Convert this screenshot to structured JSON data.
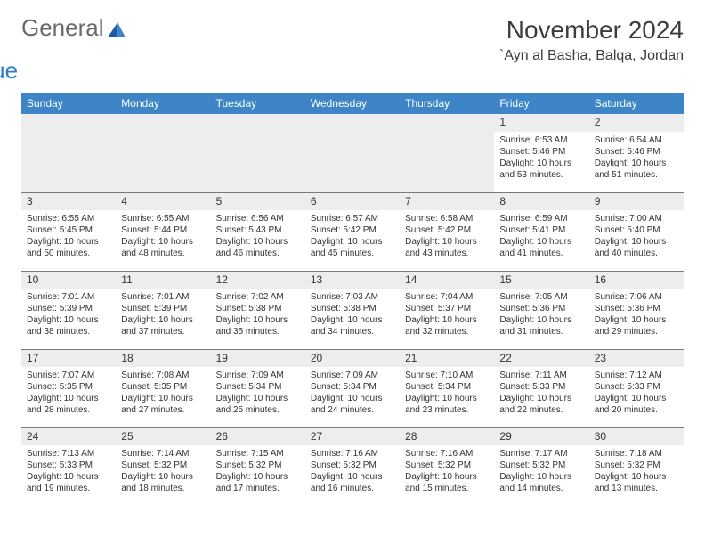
{
  "logo": {
    "text1": "General",
    "text2": "Blue"
  },
  "header": {
    "month_title": "November 2024",
    "location": "`Ayn al Basha, Balqa, Jordan"
  },
  "colors": {
    "header_bg": "#3d85c6",
    "header_text": "#ffffff",
    "daynum_bg": "#ededed",
    "cell_border": "#7a7a7a",
    "logo_gray": "#6a6a6a",
    "logo_blue": "#2f7ec2"
  },
  "day_names": [
    "Sunday",
    "Monday",
    "Tuesday",
    "Wednesday",
    "Thursday",
    "Friday",
    "Saturday"
  ],
  "weeks": [
    [
      null,
      null,
      null,
      null,
      null,
      {
        "n": "1",
        "sr": "Sunrise: 6:53 AM",
        "ss": "Sunset: 5:46 PM",
        "dl": "Daylight: 10 hours and 53 minutes."
      },
      {
        "n": "2",
        "sr": "Sunrise: 6:54 AM",
        "ss": "Sunset: 5:46 PM",
        "dl": "Daylight: 10 hours and 51 minutes."
      }
    ],
    [
      {
        "n": "3",
        "sr": "Sunrise: 6:55 AM",
        "ss": "Sunset: 5:45 PM",
        "dl": "Daylight: 10 hours and 50 minutes."
      },
      {
        "n": "4",
        "sr": "Sunrise: 6:55 AM",
        "ss": "Sunset: 5:44 PM",
        "dl": "Daylight: 10 hours and 48 minutes."
      },
      {
        "n": "5",
        "sr": "Sunrise: 6:56 AM",
        "ss": "Sunset: 5:43 PM",
        "dl": "Daylight: 10 hours and 46 minutes."
      },
      {
        "n": "6",
        "sr": "Sunrise: 6:57 AM",
        "ss": "Sunset: 5:42 PM",
        "dl": "Daylight: 10 hours and 45 minutes."
      },
      {
        "n": "7",
        "sr": "Sunrise: 6:58 AM",
        "ss": "Sunset: 5:42 PM",
        "dl": "Daylight: 10 hours and 43 minutes."
      },
      {
        "n": "8",
        "sr": "Sunrise: 6:59 AM",
        "ss": "Sunset: 5:41 PM",
        "dl": "Daylight: 10 hours and 41 minutes."
      },
      {
        "n": "9",
        "sr": "Sunrise: 7:00 AM",
        "ss": "Sunset: 5:40 PM",
        "dl": "Daylight: 10 hours and 40 minutes."
      }
    ],
    [
      {
        "n": "10",
        "sr": "Sunrise: 7:01 AM",
        "ss": "Sunset: 5:39 PM",
        "dl": "Daylight: 10 hours and 38 minutes."
      },
      {
        "n": "11",
        "sr": "Sunrise: 7:01 AM",
        "ss": "Sunset: 5:39 PM",
        "dl": "Daylight: 10 hours and 37 minutes."
      },
      {
        "n": "12",
        "sr": "Sunrise: 7:02 AM",
        "ss": "Sunset: 5:38 PM",
        "dl": "Daylight: 10 hours and 35 minutes."
      },
      {
        "n": "13",
        "sr": "Sunrise: 7:03 AM",
        "ss": "Sunset: 5:38 PM",
        "dl": "Daylight: 10 hours and 34 minutes."
      },
      {
        "n": "14",
        "sr": "Sunrise: 7:04 AM",
        "ss": "Sunset: 5:37 PM",
        "dl": "Daylight: 10 hours and 32 minutes."
      },
      {
        "n": "15",
        "sr": "Sunrise: 7:05 AM",
        "ss": "Sunset: 5:36 PM",
        "dl": "Daylight: 10 hours and 31 minutes."
      },
      {
        "n": "16",
        "sr": "Sunrise: 7:06 AM",
        "ss": "Sunset: 5:36 PM",
        "dl": "Daylight: 10 hours and 29 minutes."
      }
    ],
    [
      {
        "n": "17",
        "sr": "Sunrise: 7:07 AM",
        "ss": "Sunset: 5:35 PM",
        "dl": "Daylight: 10 hours and 28 minutes."
      },
      {
        "n": "18",
        "sr": "Sunrise: 7:08 AM",
        "ss": "Sunset: 5:35 PM",
        "dl": "Daylight: 10 hours and 27 minutes."
      },
      {
        "n": "19",
        "sr": "Sunrise: 7:09 AM",
        "ss": "Sunset: 5:34 PM",
        "dl": "Daylight: 10 hours and 25 minutes."
      },
      {
        "n": "20",
        "sr": "Sunrise: 7:09 AM",
        "ss": "Sunset: 5:34 PM",
        "dl": "Daylight: 10 hours and 24 minutes."
      },
      {
        "n": "21",
        "sr": "Sunrise: 7:10 AM",
        "ss": "Sunset: 5:34 PM",
        "dl": "Daylight: 10 hours and 23 minutes."
      },
      {
        "n": "22",
        "sr": "Sunrise: 7:11 AM",
        "ss": "Sunset: 5:33 PM",
        "dl": "Daylight: 10 hours and 22 minutes."
      },
      {
        "n": "23",
        "sr": "Sunrise: 7:12 AM",
        "ss": "Sunset: 5:33 PM",
        "dl": "Daylight: 10 hours and 20 minutes."
      }
    ],
    [
      {
        "n": "24",
        "sr": "Sunrise: 7:13 AM",
        "ss": "Sunset: 5:33 PM",
        "dl": "Daylight: 10 hours and 19 minutes."
      },
      {
        "n": "25",
        "sr": "Sunrise: 7:14 AM",
        "ss": "Sunset: 5:32 PM",
        "dl": "Daylight: 10 hours and 18 minutes."
      },
      {
        "n": "26",
        "sr": "Sunrise: 7:15 AM",
        "ss": "Sunset: 5:32 PM",
        "dl": "Daylight: 10 hours and 17 minutes."
      },
      {
        "n": "27",
        "sr": "Sunrise: 7:16 AM",
        "ss": "Sunset: 5:32 PM",
        "dl": "Daylight: 10 hours and 16 minutes."
      },
      {
        "n": "28",
        "sr": "Sunrise: 7:16 AM",
        "ss": "Sunset: 5:32 PM",
        "dl": "Daylight: 10 hours and 15 minutes."
      },
      {
        "n": "29",
        "sr": "Sunrise: 7:17 AM",
        "ss": "Sunset: 5:32 PM",
        "dl": "Daylight: 10 hours and 14 minutes."
      },
      {
        "n": "30",
        "sr": "Sunrise: 7:18 AM",
        "ss": "Sunset: 5:32 PM",
        "dl": "Daylight: 10 hours and 13 minutes."
      }
    ]
  ]
}
